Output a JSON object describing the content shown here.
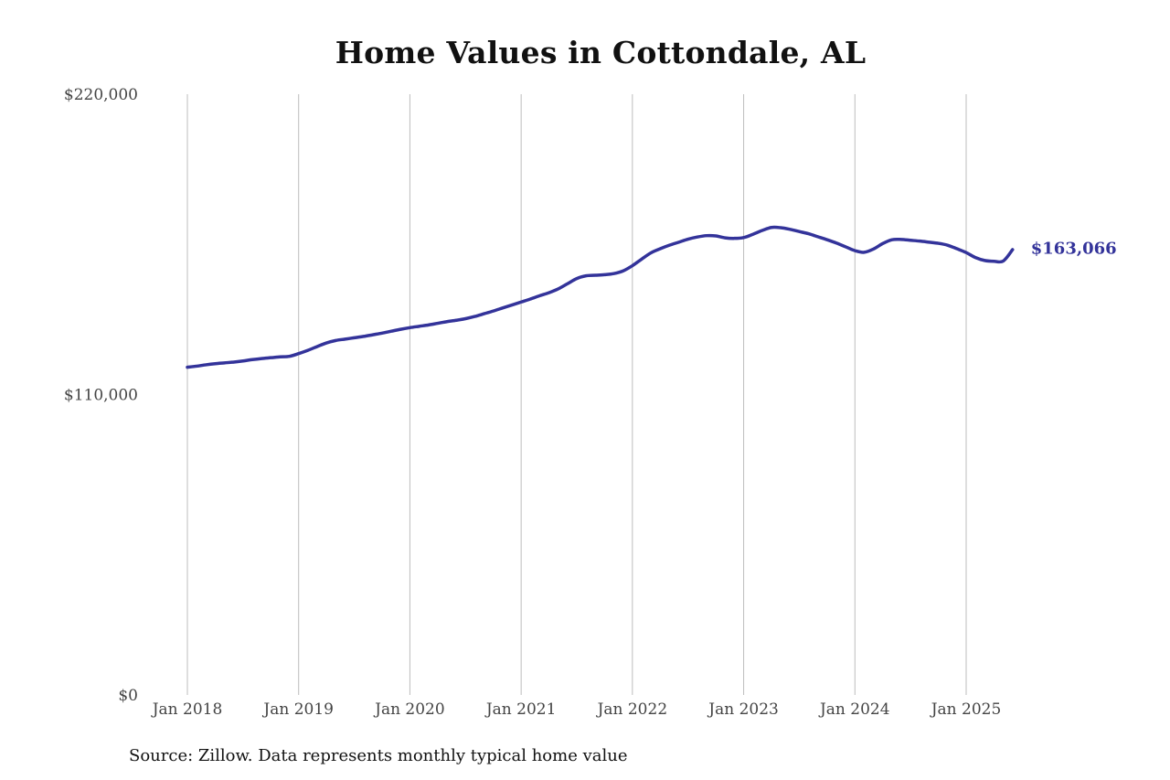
{
  "chart_data": {
    "type": "line",
    "title": "Home Values in Cottondale, AL",
    "xlabel": "",
    "ylabel": "",
    "ylim": [
      0,
      220000
    ],
    "y_ticks": [
      {
        "value": 0,
        "label": "$0"
      },
      {
        "value": 110000,
        "label": "$110,000"
      },
      {
        "value": 220000,
        "label": "$220,000"
      }
    ],
    "x_ticks": [
      {
        "value": 2018.0,
        "label": "Jan 2018"
      },
      {
        "value": 2019.0,
        "label": "Jan 2019"
      },
      {
        "value": 2020.0,
        "label": "Jan 2020"
      },
      {
        "value": 2021.0,
        "label": "Jan 2021"
      },
      {
        "value": 2022.0,
        "label": "Jan 2022"
      },
      {
        "value": 2023.0,
        "label": "Jan 2023"
      },
      {
        "value": 2024.0,
        "label": "Jan 2024"
      },
      {
        "value": 2025.0,
        "label": "Jan 2025"
      }
    ],
    "grid": "vertical",
    "line_color": "#33339a",
    "series": [
      {
        "x": [
          2018.0,
          2018.083,
          2018.167,
          2018.25,
          2018.333,
          2018.417,
          2018.5,
          2018.583,
          2018.667,
          2018.75,
          2018.833,
          2018.917,
          2019.0,
          2019.083,
          2019.167,
          2019.25,
          2019.333,
          2019.417,
          2019.5,
          2019.583,
          2019.667,
          2019.75,
          2019.833,
          2019.917,
          2020.0,
          2020.083,
          2020.167,
          2020.25,
          2020.333,
          2020.417,
          2020.5,
          2020.583,
          2020.667,
          2020.75,
          2020.833,
          2020.917,
          2021.0,
          2021.083,
          2021.167,
          2021.25,
          2021.333,
          2021.417,
          2021.5,
          2021.583,
          2021.667,
          2021.75,
          2021.833,
          2021.917,
          2022.0,
          2022.083,
          2022.167,
          2022.25,
          2022.333,
          2022.417,
          2022.5,
          2022.583,
          2022.667,
          2022.75,
          2022.833,
          2022.917,
          2023.0,
          2023.083,
          2023.167,
          2023.25,
          2023.333,
          2023.417,
          2023.5,
          2023.583,
          2023.667,
          2023.75,
          2023.833,
          2023.917,
          2024.0,
          2024.083,
          2024.167,
          2024.25,
          2024.333,
          2024.417,
          2024.5,
          2024.583,
          2024.667,
          2024.75,
          2024.833,
          2024.917,
          2025.0,
          2025.083,
          2025.167,
          2025.25,
          2025.333,
          2025.417
        ],
        "y": [
          120000,
          120400,
          120900,
          121300,
          121600,
          121900,
          122300,
          122800,
          123200,
          123500,
          123800,
          124000,
          125000,
          126200,
          127600,
          128900,
          129800,
          130300,
          130800,
          131300,
          131900,
          132500,
          133200,
          133900,
          134500,
          135000,
          135500,
          136100,
          136700,
          137200,
          137800,
          138600,
          139600,
          140600,
          141700,
          142800,
          143900,
          145000,
          146200,
          147300,
          148700,
          150600,
          152500,
          153500,
          153700,
          153900,
          154300,
          155300,
          157200,
          159600,
          161900,
          163400,
          164700,
          165800,
          166900,
          167700,
          168200,
          168100,
          167400,
          167200,
          167500,
          168700,
          170100,
          171200,
          171100,
          170500,
          169700,
          168900,
          167800,
          166700,
          165500,
          164100,
          162700,
          162100,
          163300,
          165300,
          166700,
          166800,
          166500,
          166200,
          165800,
          165400,
          164700,
          163400,
          162000,
          160200,
          159100,
          158800,
          158900,
          163066
        ],
        "end_label": "$163,066"
      }
    ]
  },
  "source_note": "Source: Zillow. Data represents monthly typical home value"
}
